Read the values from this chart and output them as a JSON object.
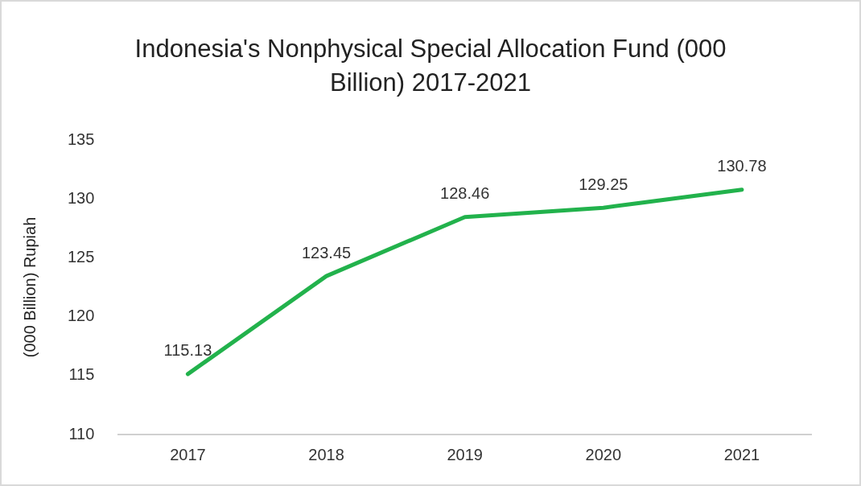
{
  "chart_data": {
    "type": "line",
    "title": "Indonesia's Nonphysical Special Allocation Fund (000 Billion) 2017-2021",
    "ylabel": "(000 Billion) Rupiah",
    "categories": [
      "2017",
      "2018",
      "2019",
      "2020",
      "2021"
    ],
    "series": [
      {
        "color": "#22b24c",
        "values": [
          115.13,
          123.45,
          128.46,
          129.25,
          130.78
        ]
      }
    ],
    "ylim": [
      110,
      135
    ],
    "yticks": [
      110,
      115,
      120,
      125,
      130,
      135
    ],
    "grid": false,
    "legend": false,
    "marker": "none",
    "line_style": "solid",
    "data_labels": true
  }
}
